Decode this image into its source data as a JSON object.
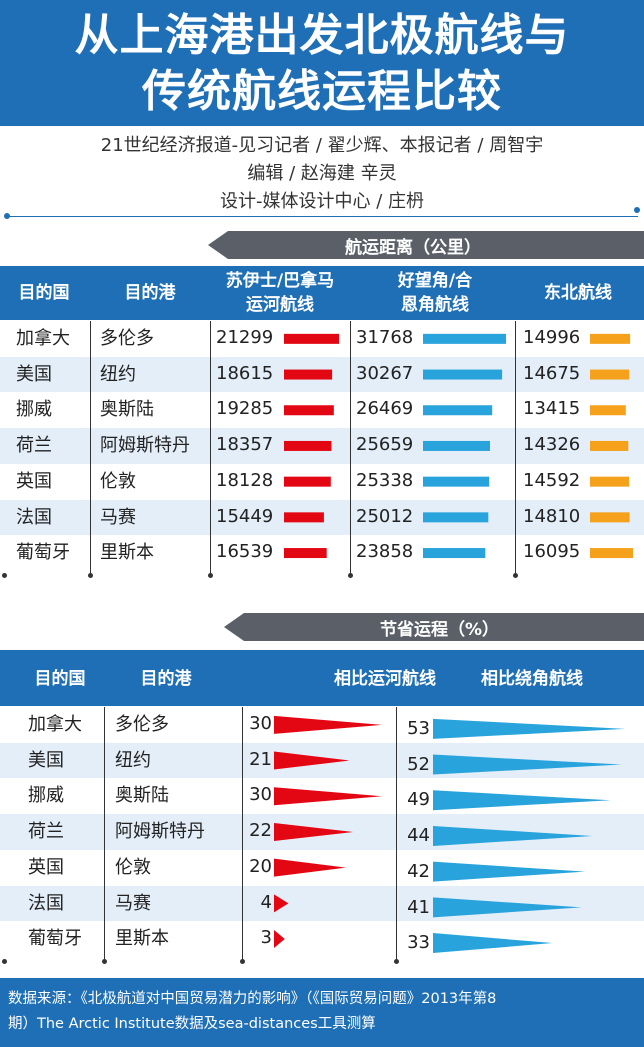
{
  "title": {
    "line1": "从上海港出发北极航线与",
    "line2": "传统航线运程比较"
  },
  "credits": {
    "line1": "21世纪经济报道-见习记者 / 翟少辉、本报记者 / 周智宇",
    "line2": "编辑 / 赵海建  辛灵",
    "line3": "设计-媒体设计中心 / 庄枬"
  },
  "colors": {
    "blue": "#1f6fb6",
    "red": "#e30613",
    "cyan": "#29a3dc",
    "orange": "#f5a11c",
    "row_alt": "#e3eef8",
    "banner": "#5a5f68"
  },
  "chart_data": [
    {
      "type": "table",
      "title": "航运距离（公里）",
      "columns": [
        "目的国",
        "目的港",
        "苏伊士/巴拿马运河航线",
        "好望角/合恩角航线",
        "东北航线"
      ],
      "rows": [
        {
          "country": "加拿大",
          "port": "多伦多",
          "canal": 21299,
          "cape": 31768,
          "northeast": 14996
        },
        {
          "country": "美国",
          "port": "纽约",
          "canal": 18615,
          "cape": 30267,
          "northeast": 14675
        },
        {
          "country": "挪威",
          "port": "奥斯陆",
          "canal": 19285,
          "cape": 26469,
          "northeast": 13415
        },
        {
          "country": "荷兰",
          "port": "阿姆斯特丹",
          "canal": 18357,
          "cape": 25659,
          "northeast": 14326
        },
        {
          "country": "英国",
          "port": "伦敦",
          "canal": 18128,
          "cape": 25338,
          "northeast": 14592
        },
        {
          "country": "法国",
          "port": "马赛",
          "canal": 15449,
          "cape": 25012,
          "northeast": 14810
        },
        {
          "country": "葡萄牙",
          "port": "里斯本",
          "canal": 16539,
          "cape": 23858,
          "northeast": 16095
        }
      ]
    },
    {
      "type": "table",
      "title": "节省运程（%）",
      "columns": [
        "目的国",
        "目的港",
        "相比运河航线",
        "相比绕角航线"
      ],
      "rows": [
        {
          "country": "加拿大",
          "port": "多伦多",
          "vs_canal": 30,
          "vs_cape": 53
        },
        {
          "country": "美国",
          "port": "纽约",
          "vs_canal": 21,
          "vs_cape": 52
        },
        {
          "country": "挪威",
          "port": "奥斯陆",
          "vs_canal": 30,
          "vs_cape": 49
        },
        {
          "country": "荷兰",
          "port": "阿姆斯特丹",
          "vs_canal": 22,
          "vs_cape": 44
        },
        {
          "country": "英国",
          "port": "伦敦",
          "vs_canal": 20,
          "vs_cape": 42
        },
        {
          "country": "法国",
          "port": "马赛",
          "vs_canal": 4,
          "vs_cape": 41
        },
        {
          "country": "葡萄牙",
          "port": "里斯本",
          "vs_canal": 3,
          "vs_cape": 33
        }
      ]
    }
  ],
  "headers1": {
    "country": "目的国",
    "port": "目的港",
    "canal_l1": "苏伊士/巴拿马",
    "canal_l2": "运河航线",
    "cape_l1": "好望角/合",
    "cape_l2": "恩角航线",
    "northeast": "东北航线"
  },
  "headers2": {
    "country": "目的国",
    "port": "目的港",
    "vs_canal": "相比运河航线",
    "vs_cape": "相比绕角航线"
  },
  "source": {
    "line1": "数据来源：《北极航道对中国贸易潜力的影响》（《国际贸易问题》2013年第8",
    "line2": "期）The Arctic Institute数据及sea-distances工具测算"
  }
}
